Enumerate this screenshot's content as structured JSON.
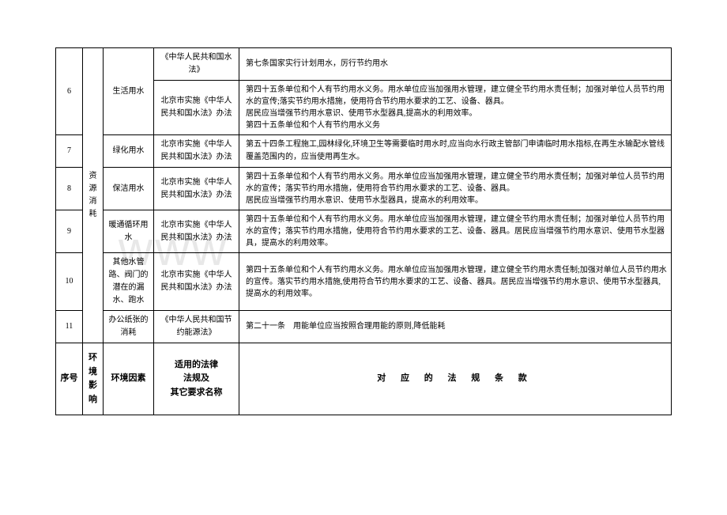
{
  "watermark": "www",
  "rows": [
    {
      "seq": "6",
      "impact": "资源消耗",
      "factor": "生活用水",
      "laws": [
        {
          "name": "《中华人民共和国水法》",
          "clause": "第七条国家实行计划用水，厉行节约用水"
        },
        {
          "name": "北京市实施《中华人民共和国水法》办法",
          "clause": "第四十五条单位和个人有节约用水义务。用水单位应当加强用水管理，建立健全节约用水责任制；加强对单位人员节约用水的宣传;落实节约用水措施，使用符合节约用水要求的工艺、设备、器具。\n居民应当增强节约用水意识、使用节水型器具,提高水的利用效率。\n第四十五条单位和个人有节约用水义务"
        }
      ]
    },
    {
      "seq": "7",
      "factor": "绿化用水",
      "laws": [
        {
          "name": "北京市实施《中华人民共和国水法》办法",
          "clause": "第五十四条工程施工,园林绿化,环境卫生等需要临时用水时,应当向水行政主管部门申请临时用水指标,在再生水输配水管线覆盖范围内的，应当使用再生水。"
        }
      ]
    },
    {
      "seq": "8",
      "factor": "保洁用水",
      "laws": [
        {
          "name": "北京市实施《中华人民共和国水法》办法",
          "clause": "第四十五条单位和个人有节约用水义务。用水单位应当加强用水管理，建立健全节约用水责任制；加强对单位人员节约用水的宣传；落实节约用水措施，使用符合节约用水要求的工艺、设备、器具。\n居民应当增强节约用水意识、使用节水型器具，提高水的利用效率。"
        }
      ]
    },
    {
      "seq": "9",
      "factor": "暖通循环用水",
      "laws": [
        {
          "name": "北京市实施《中华人民共和国水法》办法",
          "clause": "第四十五条单位和个人有节约用水义务。用水单位应当加强用水管理，建立健全节约用水责任制；加强对单位人员节约用水的宣传；落实节约用水措施，使用符合节约用水要求的工艺、设备、器具。居民应当增强节约用水意识、使用节水型器具，提高水的利用效率。"
        }
      ]
    },
    {
      "seq": "10",
      "factor": "其他水管路、阀门的潜在的漏水、跑水",
      "laws": [
        {
          "name": "北京市实施《中华人民共和国水法》办法",
          "clause": "第四十五条单位和个人有节约用水义务。用水单位应当加强用水管理，建立健全节约用水责任制;加强对单位人员节约用水的宣传。落实节约用水措施,使用符合节约用水要求的工艺、设备、器具。居民应当增强节约用水意识、使用节水型器具,提高水的利用效率。"
        }
      ]
    },
    {
      "seq": "11",
      "factor": "办公纸张的消耗",
      "laws": [
        {
          "name": "《中华人民共和国节约能源法》",
          "clause": "第二十一条　用能单位应当按照合理用能的原则,降低能耗"
        }
      ]
    }
  ],
  "header": {
    "seq": "序号",
    "impact": "环境影响",
    "factor": "环境因素",
    "law": "适用的法律\n法规及\n其它要求名称",
    "clause": "对 应 的 法 规 条 款"
  }
}
